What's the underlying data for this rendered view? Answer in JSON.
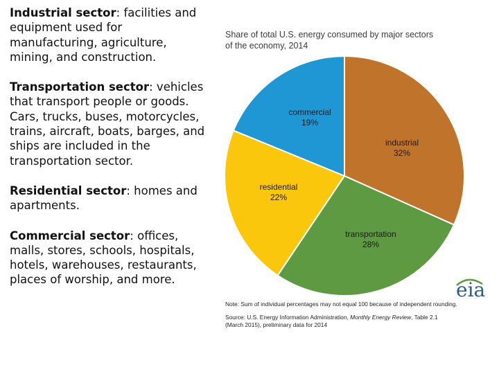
{
  "definitions": [
    {
      "term": "Industrial sector",
      "text": ": facilities and equipment used for manufacturing, agriculture, mining, and construction."
    },
    {
      "term": "Transportation sector",
      "text": ": vehicles that transport people or goods. Cars, trucks, buses, motorcycles, trains, aircraft, boats, barges, and ships are included in the transportation sector."
    },
    {
      "term": "Residential sector",
      "text": ": homes and apartments."
    },
    {
      "term": "Commercial sector",
      "text": ": offices, malls, stores, schools, hospitals, hotels, warehouses, restaurants, places of worship, and more."
    }
  ],
  "chart_data": {
    "type": "pie",
    "title_lines": [
      "Share of total U.S. energy consumed by major sectors",
      "of the economy, 2014"
    ],
    "slices": [
      {
        "label": "industrial",
        "value": 32,
        "display": "32%",
        "color": "#c0732b"
      },
      {
        "label": "transportation",
        "value": 28,
        "display": "28%",
        "color": "#5e9a41"
      },
      {
        "label": "residential",
        "value": 22,
        "display": "22%",
        "color": "#fbc70c"
      },
      {
        "label": "commercial",
        "value": 19,
        "display": "19%",
        "color": "#1f97d4"
      }
    ],
    "start": "12 o'clock",
    "direction": "clockwise"
  },
  "logo": {
    "text": "eia",
    "color": "#2d5d85",
    "accent": "#5e9a41"
  },
  "notes": {
    "note": "Note: Sum of individual percentages may not equal 100 because of independent rounding.",
    "source_prefix": "Source: U.S. Energy Information Administration, ",
    "source_italic": "Monthly Energy Review",
    "source_suffix": ", Table 2.1",
    "source_line2": "(March 2015), preliminary data for 2014"
  }
}
